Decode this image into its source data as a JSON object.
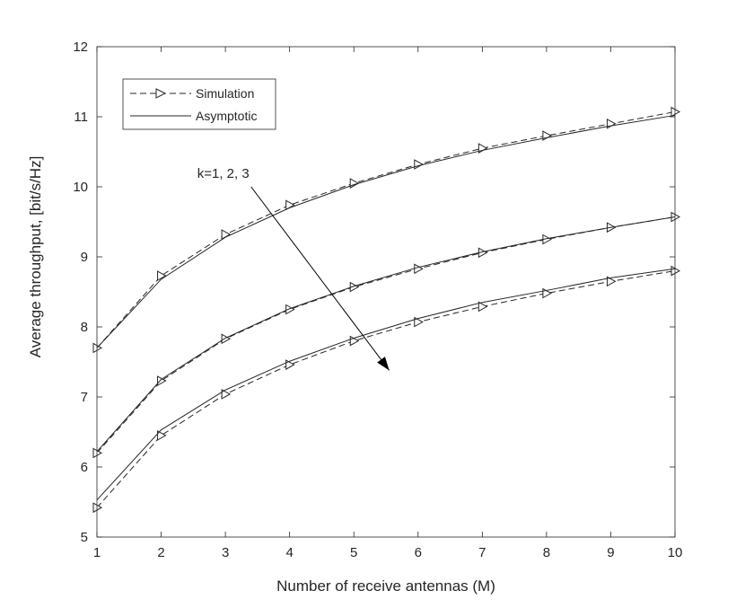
{
  "chart_data": {
    "type": "line",
    "title": "",
    "xlabel": "Number of receive antennas (M)",
    "ylabel": "Average throughput, [bit/s/Hz]",
    "xlim": [
      1,
      10
    ],
    "ylim": [
      5,
      12
    ],
    "xticks": [
      "1",
      "2",
      "3",
      "4",
      "5",
      "6",
      "7",
      "8",
      "9",
      "10"
    ],
    "yticks": [
      "5",
      "6",
      "7",
      "8",
      "9",
      "10",
      "11",
      "12"
    ],
    "grid": false,
    "legend_position": "top-left",
    "legend": [
      {
        "label": "Simulation",
        "style": "dashed",
        "marker": "right-triangle"
      },
      {
        "label": "Asymptotic",
        "style": "solid",
        "marker": "none"
      }
    ],
    "annotation": {
      "text": "k=1, 2, 3",
      "arrow_from": [
        3.4,
        10.0
      ],
      "arrow_to": [
        5.55,
        7.38
      ]
    },
    "x": [
      1,
      2,
      3,
      4,
      5,
      6,
      7,
      8,
      9,
      10
    ],
    "series": [
      {
        "group": "k=1",
        "style": "dashed",
        "marker": "right-triangle",
        "values": [
          7.7,
          8.73,
          9.32,
          9.74,
          10.05,
          10.32,
          10.55,
          10.73,
          10.9,
          11.07
        ]
      },
      {
        "group": "k=1",
        "style": "solid",
        "marker": "none",
        "values": [
          7.7,
          8.68,
          9.28,
          9.7,
          10.03,
          10.3,
          10.52,
          10.7,
          10.87,
          11.02
        ]
      },
      {
        "group": "k=2",
        "style": "dashed",
        "marker": "right-triangle",
        "values": [
          6.2,
          7.23,
          7.83,
          8.25,
          8.57,
          8.83,
          9.06,
          9.25,
          9.42,
          9.57
        ]
      },
      {
        "group": "k=2",
        "style": "solid",
        "marker": "none",
        "values": [
          6.22,
          7.25,
          7.84,
          8.26,
          8.58,
          8.85,
          9.07,
          9.26,
          9.42,
          9.57
        ]
      },
      {
        "group": "k=3",
        "style": "dashed",
        "marker": "right-triangle",
        "values": [
          5.42,
          6.45,
          7.04,
          7.46,
          7.8,
          8.07,
          8.29,
          8.48,
          8.65,
          8.8
        ]
      },
      {
        "group": "k=3",
        "style": "solid",
        "marker": "none",
        "values": [
          5.53,
          6.53,
          7.1,
          7.51,
          7.84,
          8.12,
          8.35,
          8.52,
          8.7,
          8.83
        ]
      }
    ]
  }
}
